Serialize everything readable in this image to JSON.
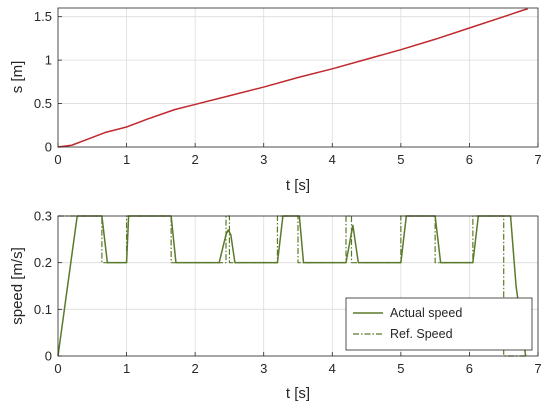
{
  "chart_data": [
    {
      "type": "line",
      "xlabel": "t [s]",
      "ylabel": "s [m]",
      "xlim": [
        0,
        7
      ],
      "ylim": [
        0,
        1.6
      ],
      "xticks": [
        "0",
        "1",
        "2",
        "3",
        "4",
        "5",
        "6",
        "7"
      ],
      "yticks": [
        "0",
        "0.5",
        "1",
        "1.5"
      ],
      "grid": true,
      "series": [
        {
          "color": "#c0282d",
          "x": [
            0,
            0.2,
            0.4,
            0.7,
            1.0,
            1.3,
            1.7,
            2.0,
            2.5,
            3.0,
            3.5,
            4.0,
            4.5,
            5.0,
            5.5,
            6.0,
            6.5,
            6.8,
            6.85
          ],
          "y": [
            0,
            0.02,
            0.08,
            0.17,
            0.23,
            0.32,
            0.43,
            0.49,
            0.59,
            0.69,
            0.8,
            0.9,
            1.01,
            1.12,
            1.24,
            1.37,
            1.5,
            1.58,
            1.59
          ]
        }
      ]
    },
    {
      "type": "line",
      "xlabel": "t [s]",
      "ylabel": "speed [m/s]",
      "xlim": [
        0,
        7
      ],
      "ylim": [
        0,
        0.3
      ],
      "xticks": [
        "0",
        "1",
        "2",
        "3",
        "4",
        "5",
        "6",
        "7"
      ],
      "yticks": [
        "0",
        "0.1",
        "0.2",
        "0.3"
      ],
      "grid": true,
      "legend_position": "bottom-right",
      "series": [
        {
          "name": "Actual speed",
          "color": "#5b7a2a",
          "dash": "solid",
          "x": [
            0,
            0.28,
            0.32,
            0.5,
            0.64,
            0.72,
            1.0,
            1.03,
            1.1,
            1.15,
            1.65,
            1.72,
            1.8,
            2.35,
            2.45,
            2.48,
            2.52,
            2.58,
            2.66,
            2.74,
            3.2,
            3.28,
            3.35,
            3.48,
            3.52,
            3.58,
            3.66,
            3.74,
            4.2,
            4.3,
            4.38,
            4.45,
            4.5,
            4.58,
            4.66,
            4.74,
            5.0,
            5.08,
            5.15,
            5.5,
            5.58,
            5.66,
            5.74,
            6.05,
            6.13,
            6.2,
            6.6,
            6.68,
            6.82
          ],
          "y": [
            0,
            0.3,
            0.3,
            0.3,
            0.3,
            0.2,
            0.2,
            0.3,
            0.3,
            0.3,
            0.3,
            0.2,
            0.2,
            0.2,
            0.26,
            0.27,
            0.26,
            0.2,
            0.2,
            0.2,
            0.2,
            0.3,
            0.3,
            0.3,
            0.3,
            0.2,
            0.2,
            0.2,
            0.2,
            0.28,
            0.2,
            0.2,
            0.2,
            0.2,
            0.2,
            0.2,
            0.2,
            0.3,
            0.3,
            0.3,
            0.2,
            0.2,
            0.2,
            0.2,
            0.3,
            0.3,
            0.3,
            0.15,
            0
          ]
        },
        {
          "name": "Ref. Speed",
          "color": "#5b7a2a",
          "dash": "dashdot",
          "x": [
            0,
            0.64,
            0.64,
            1.0,
            1.0,
            1.65,
            1.65,
            2.45,
            2.45,
            2.5,
            2.5,
            3.2,
            3.2,
            3.5,
            3.5,
            4.2,
            4.2,
            4.28,
            4.28,
            5.0,
            5.0,
            5.5,
            5.5,
            6.05,
            6.05,
            6.5,
            6.5,
            6.82
          ],
          "y": [
            0.3,
            0.3,
            0.2,
            0.2,
            0.3,
            0.3,
            0.2,
            0.2,
            0.3,
            0.3,
            0.2,
            0.2,
            0.3,
            0.3,
            0.2,
            0.2,
            0.3,
            0.3,
            0.2,
            0.2,
            0.3,
            0.3,
            0.2,
            0.2,
            0.3,
            0.3,
            0,
            0
          ]
        }
      ]
    }
  ]
}
